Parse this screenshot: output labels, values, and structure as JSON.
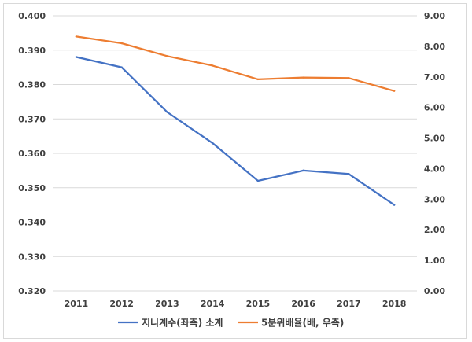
{
  "chart_data": {
    "type": "line",
    "x": [
      "2011",
      "2012",
      "2013",
      "2014",
      "2015",
      "2016",
      "2017",
      "2018"
    ],
    "series": [
      {
        "name": "지니계수(좌측) 소계",
        "axis": "left",
        "color": "#4472c4",
        "values": [
          0.388,
          0.385,
          0.372,
          0.363,
          0.352,
          0.355,
          0.354,
          0.345
        ]
      },
      {
        "name": "5분위배율(배, 우측)",
        "axis": "right",
        "color": "#ed7d31",
        "values": [
          8.32,
          8.1,
          7.68,
          7.37,
          6.92,
          6.98,
          6.96,
          6.54
        ]
      }
    ],
    "y_left": {
      "ylim": [
        0.32,
        0.4
      ],
      "ticks": [
        "0.320",
        "0.330",
        "0.340",
        "0.350",
        "0.360",
        "0.370",
        "0.380",
        "0.390",
        "0.400"
      ]
    },
    "y_right": {
      "ylim": [
        0,
        9
      ],
      "ticks": [
        "0.00",
        "1.00",
        "2.00",
        "3.00",
        "4.00",
        "5.00",
        "6.00",
        "7.00",
        "8.00",
        "9.00"
      ]
    },
    "grid": true,
    "legend_position": "bottom"
  }
}
